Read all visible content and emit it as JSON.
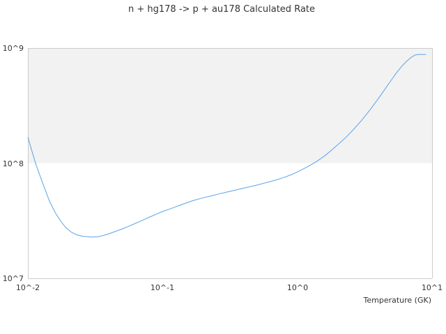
{
  "chart_data": {
    "type": "line",
    "title": "n + hg178 -> p + au178 Calculated Rate",
    "xlabel": "Temperature (GK)",
    "ylabel": "",
    "x_scale": "log",
    "y_scale": "log",
    "xlim": [
      0.01,
      10
    ],
    "ylim": [
      10000000,
      1000000000
    ],
    "x_tick_labels": [
      "10^-2",
      "10^-1",
      "10^0",
      "10^1"
    ],
    "y_tick_labels": [
      "10^7",
      "10^8",
      "10^9"
    ],
    "grid": false,
    "shaded_band": {
      "y_from": 100000000,
      "y_to": 1000000000
    },
    "colors": {
      "line": "#5aa3e8",
      "band": "#f2f2f2",
      "axis": "#cccccc"
    },
    "series": [
      {
        "x": [
          0.01,
          0.0107,
          0.0115,
          0.0125,
          0.0135,
          0.0145,
          0.016,
          0.0175,
          0.019,
          0.021,
          0.023,
          0.025,
          0.0275,
          0.03,
          0.033,
          0.036,
          0.04,
          0.045,
          0.05,
          0.056,
          0.062,
          0.07,
          0.08,
          0.09,
          0.1,
          0.115,
          0.13,
          0.15,
          0.17,
          0.2,
          0.23,
          0.26,
          0.3,
          0.35,
          0.4,
          0.45,
          0.5,
          0.6,
          0.7,
          0.8,
          0.9,
          1.0,
          1.2,
          1.4,
          1.6,
          1.8,
          2.0,
          2.3,
          2.6,
          3.0,
          3.5,
          4.0,
          4.5,
          5.0,
          5.5,
          6.0,
          6.5,
          7.0,
          7.5,
          8.0,
          8.5,
          9.0
        ],
        "values": [
          168000000,
          128000000,
          97000000,
          74000000,
          58000000,
          46500000,
          37000000,
          31500000,
          27800000,
          25200000,
          23900000,
          23300000,
          23000000,
          22800000,
          23000000,
          23500000,
          24400000,
          25600000,
          26800000,
          28300000,
          29800000,
          31700000,
          34000000,
          36100000,
          38000000,
          40300000,
          42500000,
          45200000,
          47500000,
          50000000,
          52000000,
          54000000,
          56100000,
          58500000,
          60700000,
          62700000,
          64500000,
          68200000,
          71600000,
          75400000,
          79400000,
          83800000,
          93500000,
          104000000,
          116000000,
          130000000,
          145000000,
          168000000,
          195000000,
          235000000,
          295000000,
          365000000,
          445000000,
          530000000,
          620000000,
          700000000,
          770000000,
          830000000,
          870000000,
          880000000,
          880000000,
          880000000
        ]
      }
    ]
  }
}
